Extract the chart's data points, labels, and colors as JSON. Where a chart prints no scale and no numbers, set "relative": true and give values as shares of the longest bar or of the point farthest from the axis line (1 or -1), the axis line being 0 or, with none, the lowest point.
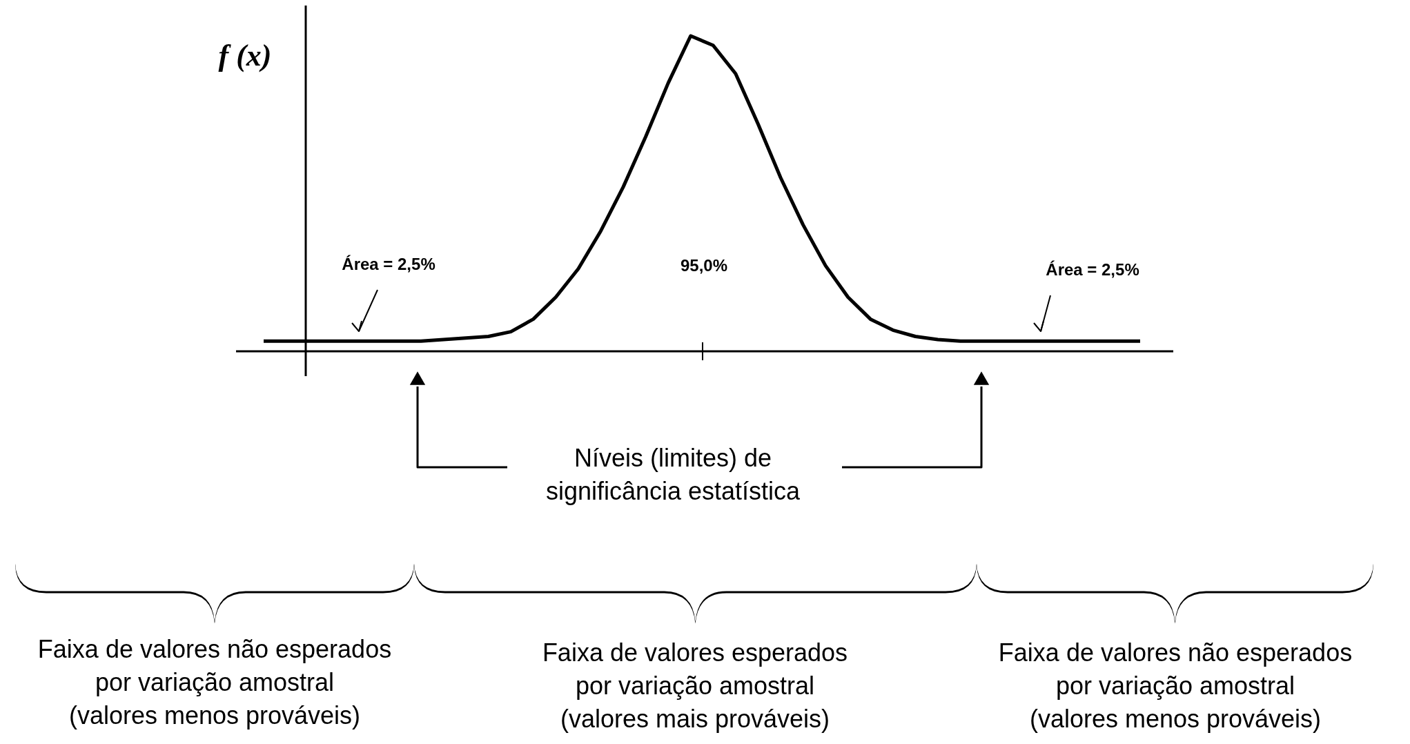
{
  "chart_data": {
    "type": "line",
    "relative": true,
    "ylabel": "f (x)",
    "categories": [
      null,
      null,
      null,
      null,
      null,
      null,
      null,
      null,
      null,
      null,
      null,
      null,
      null,
      null,
      null,
      null,
      null,
      null,
      null,
      null,
      null,
      null,
      null,
      null,
      null,
      null,
      null,
      null,
      null,
      null,
      null,
      null,
      null,
      null,
      null,
      null,
      null,
      null,
      null,
      null
    ],
    "series": [
      {
        "color": "#000000",
        "values": [
          0.03,
          0.03,
          0.03,
          0.03,
          0.03,
          0.03,
          0.03,
          0.03,
          0.035,
          0.04,
          0.045,
          0.06,
          0.1,
          0.17,
          0.26,
          0.38,
          0.52,
          0.68,
          0.85,
          1,
          0.97,
          0.88,
          0.72,
          0.55,
          0.4,
          0.27,
          0.17,
          0.1,
          0.065,
          0.045,
          0.035,
          0.03,
          0.03,
          0.03,
          0.03,
          0.03,
          0.03,
          0.03,
          0.03,
          0.03
        ]
      }
    ],
    "annotations": [
      "Área = 2,5%",
      "95,0%",
      "Área = 2,5%",
      "Níveis (limites) de\nsignificância estatística",
      "Faixa de valores não esperados\npor variação amostral\n(valores menos prováveis)",
      "Faixa de valores esperados\npor variação amostral\n(valores mais prováveis)",
      "Faixa de valores não esperados\npor variação amostral\n(valores menos prováveis)"
    ]
  }
}
